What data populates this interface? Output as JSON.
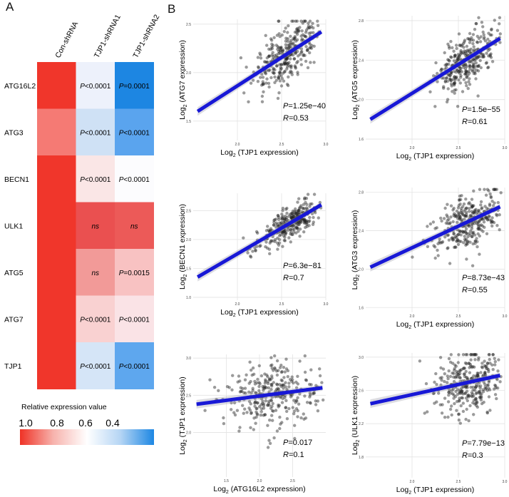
{
  "panel_a": {
    "label": "A",
    "columns": [
      "Con-shRNA",
      "TJP1-shRNA1",
      "TJP1-shRNA2"
    ],
    "rows": [
      {
        "gene": "ATG16L2",
        "color": [
          "#f0362b",
          "#edf1fb",
          "#1d86e2"
        ],
        "text": [
          "",
          "P<0.0001",
          "P=0.0001"
        ]
      },
      {
        "gene": "ATG3",
        "color": [
          "#f57a74",
          "#cfe1f5",
          "#5aa4ee"
        ],
        "text": [
          "",
          "P<0.0001",
          "P<0.0001"
        ]
      },
      {
        "gene": "BECN1",
        "color": [
          "#f0362b",
          "#fae6e6",
          "#fcfcfe"
        ],
        "text": [
          "",
          "P<0.0001",
          "P<0.0001"
        ]
      },
      {
        "gene": "ULK1",
        "color": [
          "#f0362b",
          "#ea5050",
          "#ec5a58"
        ],
        "text": [
          "",
          "ns",
          "ns"
        ]
      },
      {
        "gene": "ATG5",
        "color": [
          "#f0362b",
          "#f29a98",
          "#f8c2c2"
        ],
        "text": [
          "",
          "ns",
          "P=0.0015"
        ]
      },
      {
        "gene": "ATG7",
        "color": [
          "#f0362b",
          "#f9d1d1",
          "#fae3e6"
        ],
        "text": [
          "",
          "P<0.0001",
          "P<0.0001"
        ]
      },
      {
        "gene": "TJP1",
        "color": [
          "#f0362b",
          "#d5e5f7",
          "#5ea7ee"
        ],
        "text": [
          "",
          "P<0.0001",
          "P<0.0001"
        ]
      }
    ],
    "legend": {
      "title": "Relative expression value",
      "ticks": [
        "1.0",
        "0.8",
        "0.6",
        "0.4"
      ],
      "colors": [
        "#ef3226",
        "#f7b3ad",
        "#ffffff",
        "#b5d5f4",
        "#1d87e3"
      ]
    }
  },
  "panel_b": {
    "label": "B",
    "plots": [
      {
        "name": "atg7-vs-tjp1",
        "ylabel": "(ATG7 expression)",
        "xlabel": "(TJP1 expression)",
        "p_value": "=1.25e−40",
        "r_value": "=0.53",
        "xlim": [
          1.5,
          3.0
        ],
        "ylim": [
          1.3,
          2.55
        ],
        "xticks": [
          "2.0",
          "2.5",
          "3.0"
        ],
        "yticks": [
          "1.5",
          "2.0",
          "2.5"
        ],
        "fit": [
          [
            1.55,
            1.6
          ],
          [
            2.95,
            2.42
          ]
        ],
        "cloud": {
          "xc": 2.55,
          "sx": 0.18,
          "slope": 0.58,
          "noise": 0.14,
          "n": 320,
          "seed": 7
        }
      },
      {
        "name": "atg5-vs-tjp1",
        "ylabel": "(ATG5 expression)",
        "xlabel": "(TJP1 expression)",
        "p_value": "=1.5e−55",
        "r_value": "=0.61",
        "xlim": [
          1.5,
          3.0
        ],
        "ylim": [
          1.55,
          2.85
        ],
        "xticks": [
          "2.0",
          "2.5",
          "3.0"
        ],
        "yticks": [
          "1.6",
          "2.0",
          "2.4",
          "2.8"
        ],
        "fit": [
          [
            1.55,
            1.8
          ],
          [
            2.95,
            2.62
          ]
        ],
        "cloud": {
          "xc": 2.6,
          "sx": 0.16,
          "slope": 0.6,
          "noise": 0.14,
          "n": 320,
          "seed": 11
        }
      },
      {
        "name": "becn1-vs-tjp1",
        "ylabel": "(BECN1 expression)",
        "xlabel": "(TJP1 expression)",
        "p_value": "=6.3e−81",
        "r_value": "=0.7",
        "xlim": [
          1.5,
          3.0
        ],
        "ylim": [
          0.95,
          2.8
        ],
        "xticks": [
          "2.0",
          "2.5",
          "3.0"
        ],
        "yticks": [
          "1.0",
          "1.5",
          "2.0",
          "2.5"
        ],
        "fit": [
          [
            1.55,
            1.35
          ],
          [
            2.95,
            2.6
          ]
        ],
        "cloud": {
          "xc": 2.6,
          "sx": 0.18,
          "slope": 0.9,
          "noise": 0.13,
          "n": 320,
          "seed": 23
        }
      },
      {
        "name": "atg3-vs-tjp1",
        "ylabel": "(ATG3 expression)",
        "xlabel": "(TJP1 expression)",
        "p_value": "=8.73e−43",
        "r_value": "=0.55",
        "xlim": [
          1.5,
          3.0
        ],
        "ylim": [
          1.55,
          2.85
        ],
        "xticks": [
          "2.0",
          "2.5",
          "3.0"
        ],
        "yticks": [
          "1.6",
          "2.0",
          "2.4",
          "2.8"
        ],
        "fit": [
          [
            1.55,
            2.02
          ],
          [
            2.95,
            2.65
          ]
        ],
        "cloud": {
          "xc": 2.6,
          "sx": 0.18,
          "slope": 0.45,
          "noise": 0.14,
          "n": 320,
          "seed": 31
        }
      },
      {
        "name": "tjp1-vs-atg16l2",
        "ylabel": "(TJP1 expression)",
        "xlabel": "(ATG16L2 expression)",
        "p_value": "=0.017",
        "r_value": "=0.1",
        "xlim": [
          1.0,
          3.0
        ],
        "ylim": [
          1.4,
          3.05
        ],
        "xticks": [
          "1.5",
          "2.0",
          "2.5"
        ],
        "yticks": [
          "2.0",
          "2.5",
          "3.0"
        ],
        "fit": [
          [
            1.05,
            2.38
          ],
          [
            2.95,
            2.6
          ]
        ],
        "cloud": {
          "xc": 2.2,
          "sx": 0.38,
          "slope": 0.1,
          "noise": 0.22,
          "n": 320,
          "seed": 43
        }
      },
      {
        "name": "ulk1-vs-tjp1",
        "ylabel": "(ULK1 expression)",
        "xlabel": "(TJP1 expression)",
        "p_value": "=7.79e−13",
        "r_value": "=0.3",
        "xlim": [
          1.5,
          3.0
        ],
        "ylim": [
          1.55,
          3.05
        ],
        "xticks": [
          "2.0",
          "2.5",
          "3.0"
        ],
        "yticks": [
          "1.8",
          "2.2",
          "2.6",
          "3.0"
        ],
        "fit": [
          [
            1.55,
            2.44
          ],
          [
            2.95,
            2.78
          ]
        ],
        "cloud": {
          "xc": 2.6,
          "sx": 0.18,
          "slope": 0.25,
          "noise": 0.18,
          "n": 320,
          "seed": 59
        }
      }
    ]
  }
}
